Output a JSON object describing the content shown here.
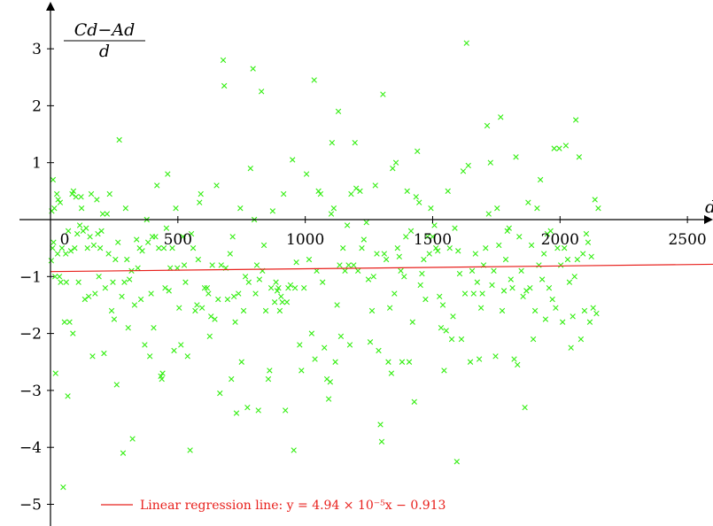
{
  "chart_data": {
    "type": "scatter",
    "title": "",
    "ylabel": {
      "numerator": "Cd−Ad",
      "denominator": "d"
    },
    "xlabel": "d",
    "xlim": [
      -10,
      2600
    ],
    "ylim": [
      -5.35,
      3.75
    ],
    "x_ticks": [
      0,
      500,
      1000,
      1500,
      2000,
      2500
    ],
    "x_tick_labels": [
      "0",
      "500",
      "1000",
      "1500",
      "2000",
      "2500"
    ],
    "y_ticks": [
      3,
      2,
      1,
      -1,
      -2,
      -3,
      -4,
      -5
    ],
    "y_tick_labels": [
      "3",
      "2",
      "1",
      "−1",
      "−2",
      "−3",
      "−4",
      "−5"
    ],
    "grid": false,
    "marker": "x",
    "marker_color": "#33ee11",
    "regression": {
      "label": "Linear regression line: y = 4.94 × 10⁻⁵x − 0.913",
      "slope": 4.94e-05,
      "intercept": -0.913,
      "color": "#e8201c"
    },
    "legend_placement": "bottom-left",
    "points": [
      [
        3,
        -0.72
      ],
      [
        5,
        0.15
      ],
      [
        8,
        -0.5
      ],
      [
        10,
        0.7
      ],
      [
        12,
        -0.4
      ],
      [
        15,
        0.2
      ],
      [
        18,
        -1.0
      ],
      [
        20,
        -2.7
      ],
      [
        25,
        0.45
      ],
      [
        28,
        -0.6
      ],
      [
        30,
        0.35
      ],
      [
        35,
        -1.0
      ],
      [
        38,
        0.3
      ],
      [
        40,
        -1.1
      ],
      [
        45,
        -0.5
      ],
      [
        50,
        -4.7
      ],
      [
        55,
        -1.8
      ],
      [
        60,
        -0.6
      ],
      [
        62,
        -1.1
      ],
      [
        68,
        -3.1
      ],
      [
        70,
        -0.2
      ],
      [
        75,
        -1.8
      ],
      [
        80,
        -0.55
      ],
      [
        85,
        0.45
      ],
      [
        88,
        -2.0
      ],
      [
        90,
        0.5
      ],
      [
        95,
        -0.5
      ],
      [
        100,
        0.4
      ],
      [
        105,
        -0.25
      ],
      [
        110,
        -1.1
      ],
      [
        115,
        -0.1
      ],
      [
        120,
        0.4
      ],
      [
        122,
        0.2
      ],
      [
        128,
        -0.2
      ],
      [
        135,
        -1.4
      ],
      [
        140,
        -0.15
      ],
      [
        145,
        -0.5
      ],
      [
        150,
        -1.35
      ],
      [
        155,
        -0.3
      ],
      [
        160,
        0.45
      ],
      [
        165,
        -2.4
      ],
      [
        170,
        -0.45
      ],
      [
        175,
        -1.3
      ],
      [
        182,
        0.35
      ],
      [
        186,
        -0.25
      ],
      [
        190,
        -1.0
      ],
      [
        195,
        -0.5
      ],
      [
        200,
        -0.2
      ],
      [
        205,
        0.1
      ],
      [
        210,
        -2.35
      ],
      [
        215,
        -1.2
      ],
      [
        222,
        0.1
      ],
      [
        228,
        -0.6
      ],
      [
        232,
        0.45
      ],
      [
        240,
        -1.6
      ],
      [
        245,
        -1.1
      ],
      [
        250,
        -1.75
      ],
      [
        255,
        -0.7
      ],
      [
        260,
        -2.9
      ],
      [
        265,
        -0.4
      ],
      [
        270,
        1.4
      ],
      [
        280,
        -1.35
      ],
      [
        285,
        -4.1
      ],
      [
        290,
        -1.1
      ],
      [
        295,
        0.2
      ],
      [
        300,
        -0.7
      ],
      [
        305,
        -1.9
      ],
      [
        310,
        -1.05
      ],
      [
        318,
        -0.9
      ],
      [
        322,
        -3.85
      ],
      [
        330,
        -1.5
      ],
      [
        338,
        -0.35
      ],
      [
        343,
        -0.85
      ],
      [
        350,
        -0.5
      ],
      [
        355,
        -1.4
      ],
      [
        360,
        -0.55
      ],
      [
        370,
        -2.2
      ],
      [
        378,
        0.0
      ],
      [
        383,
        -0.4
      ],
      [
        390,
        -2.4
      ],
      [
        395,
        -1.3
      ],
      [
        400,
        -0.3
      ],
      [
        405,
        -1.9
      ],
      [
        412,
        -0.3
      ],
      [
        418,
        0.6
      ],
      [
        425,
        -0.5
      ],
      [
        433,
        -2.75
      ],
      [
        437,
        -2.8
      ],
      [
        440,
        -2.7
      ],
      [
        445,
        -0.5
      ],
      [
        450,
        -1.2
      ],
      [
        455,
        -0.15
      ],
      [
        460,
        0.8
      ],
      [
        465,
        -1.25
      ],
      [
        470,
        -0.85
      ],
      [
        478,
        -0.5
      ],
      [
        485,
        -2.3
      ],
      [
        492,
        0.2
      ],
      [
        498,
        -0.85
      ],
      [
        505,
        -1.55
      ],
      [
        512,
        -2.2
      ],
      [
        520,
        -0.3
      ],
      [
        525,
        -0.8
      ],
      [
        530,
        -1.1
      ],
      [
        538,
        -2.4
      ],
      [
        548,
        -4.05
      ],
      [
        553,
        -0.25
      ],
      [
        560,
        -0.5
      ],
      [
        568,
        -1.6
      ],
      [
        575,
        -1.5
      ],
      [
        580,
        -0.7
      ],
      [
        585,
        0.3
      ],
      [
        590,
        0.45
      ],
      [
        595,
        -1.55
      ],
      [
        605,
        -1.2
      ],
      [
        615,
        -1.2
      ],
      [
        620,
        -1.3
      ],
      [
        625,
        -2.05
      ],
      [
        630,
        -1.7
      ],
      [
        635,
        -0.8
      ],
      [
        645,
        -1.75
      ],
      [
        652,
        0.6
      ],
      [
        658,
        -1.4
      ],
      [
        665,
        -3.05
      ],
      [
        670,
        -0.8
      ],
      [
        678,
        2.8
      ],
      [
        682,
        2.35
      ],
      [
        688,
        -0.85
      ],
      [
        695,
        -1.4
      ],
      [
        705,
        -0.6
      ],
      [
        710,
        -2.8
      ],
      [
        715,
        -0.3
      ],
      [
        720,
        -1.35
      ],
      [
        725,
        -1.8
      ],
      [
        730,
        -3.4
      ],
      [
        738,
        -1.3
      ],
      [
        745,
        0.2
      ],
      [
        750,
        -2.5
      ],
      [
        758,
        -1.6
      ],
      [
        765,
        -1.0
      ],
      [
        773,
        -3.3
      ],
      [
        778,
        -1.1
      ],
      [
        785,
        0.9
      ],
      [
        795,
        2.65
      ],
      [
        800,
        0.0
      ],
      [
        805,
        -1.3
      ],
      [
        810,
        -0.8
      ],
      [
        816,
        -3.35
      ],
      [
        820,
        -1.05
      ],
      [
        828,
        2.25
      ],
      [
        832,
        -0.9
      ],
      [
        838,
        -0.45
      ],
      [
        845,
        -1.6
      ],
      [
        855,
        -2.8
      ],
      [
        860,
        -2.65
      ],
      [
        866,
        -1.2
      ],
      [
        872,
        0.15
      ],
      [
        880,
        -1.45
      ],
      [
        885,
        -1.1
      ],
      [
        890,
        -1.25
      ],
      [
        895,
        -1.2
      ],
      [
        900,
        -1.6
      ],
      [
        905,
        -1.35
      ],
      [
        910,
        -1.45
      ],
      [
        915,
        0.45
      ],
      [
        922,
        -3.35
      ],
      [
        928,
        -1.45
      ],
      [
        933,
        -1.2
      ],
      [
        942,
        -1.15
      ],
      [
        950,
        1.05
      ],
      [
        955,
        -4.05
      ],
      [
        960,
        -1.2
      ],
      [
        965,
        -0.75
      ],
      [
        978,
        -2.2
      ],
      [
        985,
        -2.65
      ],
      [
        995,
        -1.2
      ],
      [
        1005,
        0.8
      ],
      [
        1015,
        -0.7
      ],
      [
        1025,
        -2.0
      ],
      [
        1035,
        2.45
      ],
      [
        1038,
        -2.45
      ],
      [
        1045,
        -0.9
      ],
      [
        1052,
        0.5
      ],
      [
        1060,
        0.45
      ],
      [
        1068,
        -1.1
      ],
      [
        1075,
        -2.25
      ],
      [
        1085,
        -2.8
      ],
      [
        1092,
        -3.15
      ],
      [
        1098,
        -2.85
      ],
      [
        1102,
        0.1
      ],
      [
        1105,
        1.35
      ],
      [
        1112,
        0.2
      ],
      [
        1118,
        -2.5
      ],
      [
        1125,
        -1.5
      ],
      [
        1130,
        1.9
      ],
      [
        1135,
        -0.8
      ],
      [
        1140,
        -2.05
      ],
      [
        1148,
        -0.5
      ],
      [
        1156,
        -0.9
      ],
      [
        1165,
        -0.1
      ],
      [
        1170,
        -0.8
      ],
      [
        1175,
        -2.2
      ],
      [
        1180,
        0.45
      ],
      [
        1190,
        -0.8
      ],
      [
        1195,
        1.35
      ],
      [
        1200,
        0.55
      ],
      [
        1207,
        -0.9
      ],
      [
        1215,
        0.5
      ],
      [
        1222,
        -0.5
      ],
      [
        1230,
        -0.35
      ],
      [
        1240,
        -0.05
      ],
      [
        1248,
        -1.05
      ],
      [
        1255,
        -2.15
      ],
      [
        1262,
        -1.6
      ],
      [
        1268,
        -1.0
      ],
      [
        1275,
        0.6
      ],
      [
        1281,
        -0.6
      ],
      [
        1288,
        -2.3
      ],
      [
        1295,
        -3.6
      ],
      [
        1300,
        -3.9
      ],
      [
        1305,
        2.2
      ],
      [
        1310,
        -0.6
      ],
      [
        1318,
        -0.7
      ],
      [
        1326,
        -2.5
      ],
      [
        1332,
        -1.55
      ],
      [
        1338,
        -2.7
      ],
      [
        1343,
        0.9
      ],
      [
        1350,
        -1.3
      ],
      [
        1356,
        1.0
      ],
      [
        1362,
        -0.5
      ],
      [
        1369,
        -0.65
      ],
      [
        1375,
        -0.9
      ],
      [
        1380,
        -2.5
      ],
      [
        1388,
        -1.0
      ],
      [
        1395,
        -0.3
      ],
      [
        1400,
        0.5
      ],
      [
        1408,
        -2.5
      ],
      [
        1415,
        -0.2
      ],
      [
        1421,
        -1.8
      ],
      [
        1428,
        -3.2
      ],
      [
        1435,
        0.4
      ],
      [
        1440,
        1.2
      ],
      [
        1447,
        0.3
      ],
      [
        1452,
        -1.15
      ],
      [
        1458,
        -0.95
      ],
      [
        1465,
        -0.7
      ],
      [
        1472,
        -1.4
      ],
      [
        1480,
        -0.3
      ],
      [
        1487,
        -0.6
      ],
      [
        1493,
        0.2
      ],
      [
        1500,
        -0.3
      ],
      [
        1507,
        -0.1
      ],
      [
        1513,
        -0.5
      ],
      [
        1520,
        -0.55
      ],
      [
        1527,
        -1.35
      ],
      [
        1533,
        -1.9
      ],
      [
        1540,
        -1.5
      ],
      [
        1545,
        -2.65
      ],
      [
        1553,
        -1.95
      ],
      [
        1560,
        0.5
      ],
      [
        1567,
        -0.5
      ],
      [
        1575,
        -2.1
      ],
      [
        1580,
        -1.7
      ],
      [
        1587,
        -0.15
      ],
      [
        1595,
        -4.25
      ],
      [
        1600,
        -0.55
      ],
      [
        1606,
        -0.95
      ],
      [
        1613,
        -2.1
      ],
      [
        1620,
        0.85
      ],
      [
        1627,
        -1.3
      ],
      [
        1633,
        3.1
      ],
      [
        1640,
        0.95
      ],
      [
        1648,
        -2.5
      ],
      [
        1655,
        -0.9
      ],
      [
        1661,
        -1.3
      ],
      [
        1668,
        -0.6
      ],
      [
        1675,
        -1.1
      ],
      [
        1683,
        -2.45
      ],
      [
        1690,
        -1.55
      ],
      [
        1695,
        -1.3
      ],
      [
        1700,
        -0.8
      ],
      [
        1708,
        -0.5
      ],
      [
        1714,
        1.65
      ],
      [
        1720,
        0.1
      ],
      [
        1727,
        1.0
      ],
      [
        1733,
        -1.15
      ],
      [
        1740,
        -0.9
      ],
      [
        1747,
        -2.4
      ],
      [
        1753,
        0.2
      ],
      [
        1760,
        -0.45
      ],
      [
        1767,
        1.8
      ],
      [
        1773,
        -1.6
      ],
      [
        1780,
        -1.25
      ],
      [
        1787,
        -0.7
      ],
      [
        1793,
        -0.2
      ],
      [
        1800,
        -0.15
      ],
      [
        1807,
        -1.05
      ],
      [
        1813,
        -1.2
      ],
      [
        1820,
        -2.45
      ],
      [
        1827,
        1.1
      ],
      [
        1833,
        -2.55
      ],
      [
        1840,
        -0.3
      ],
      [
        1848,
        -0.9
      ],
      [
        1855,
        -1.35
      ],
      [
        1862,
        -3.3
      ],
      [
        1868,
        -1.25
      ],
      [
        1875,
        0.3
      ],
      [
        1882,
        -1.2
      ],
      [
        1888,
        -0.45
      ],
      [
        1895,
        -2.1
      ],
      [
        1902,
        -1.6
      ],
      [
        1910,
        0.2
      ],
      [
        1917,
        -0.8
      ],
      [
        1923,
        0.7
      ],
      [
        1930,
        -1.05
      ],
      [
        1937,
        -0.6
      ],
      [
        1943,
        -1.75
      ],
      [
        1950,
        -0.25
      ],
      [
        1957,
        -1.2
      ],
      [
        1963,
        -0.2
      ],
      [
        1970,
        -1.4
      ],
      [
        1977,
        1.25
      ],
      [
        1983,
        -1.55
      ],
      [
        1990,
        -0.5
      ],
      [
        1997,
        1.25
      ],
      [
        2003,
        -0.8
      ],
      [
        2010,
        -1.8
      ],
      [
        2017,
        -0.5
      ],
      [
        2023,
        1.3
      ],
      [
        2030,
        -0.7
      ],
      [
        2037,
        -1.1
      ],
      [
        2043,
        -2.25
      ],
      [
        2050,
        -1.7
      ],
      [
        2057,
        -1.0
      ],
      [
        2062,
        1.75
      ],
      [
        2068,
        -0.7
      ],
      [
        2075,
        1.1
      ],
      [
        2082,
        -2.1
      ],
      [
        2090,
        -0.6
      ],
      [
        2096,
        -1.6
      ],
      [
        2103,
        -0.25
      ],
      [
        2110,
        -0.4
      ],
      [
        2117,
        -1.8
      ],
      [
        2123,
        -0.65
      ],
      [
        2130,
        -1.55
      ],
      [
        2137,
        0.35
      ],
      [
        2143,
        -1.65
      ],
      [
        2150,
        0.2
      ]
    ]
  }
}
